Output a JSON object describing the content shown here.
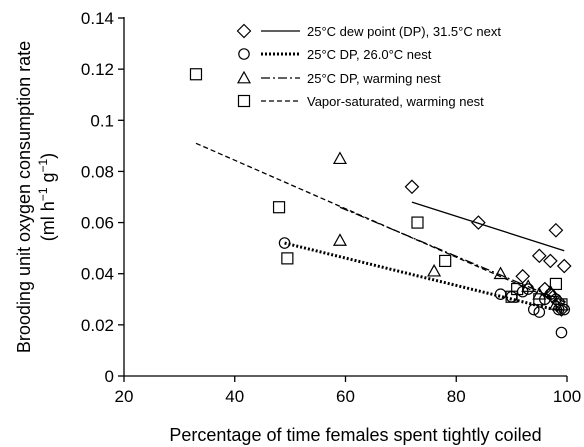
{
  "chart_data": {
    "type": "scatter",
    "xlabel": "Percentage of time females spent tightly coiled",
    "ylabel_line1": "Brooding unit oxygen consumption rate",
    "ylabel_line2_prefix": "(ml h",
    "ylabel_line2_mid": " g",
    "ylabel_line2_suffix": ")",
    "ylabel_sup": "−1",
    "xlim": [
      20,
      100
    ],
    "ylim": [
      0,
      0.14
    ],
    "xticks": [
      "20",
      "40",
      "60",
      "80",
      "100"
    ],
    "yticks": [
      "0",
      "0.02",
      "0.04",
      "0.06",
      "0.08",
      "0.1",
      "0.12",
      "0.14"
    ],
    "grid": false,
    "legend_position": "top-right",
    "series": [
      {
        "name": "25°C dew point (DP), 31.5°C next",
        "marker": "diamond",
        "line_style": "solid",
        "points": [
          [
            72,
            0.074
          ],
          [
            84,
            0.06
          ],
          [
            95,
            0.047
          ],
          [
            97,
            0.045
          ],
          [
            98,
            0.057
          ],
          [
            99.5,
            0.043
          ],
          [
            92,
            0.039
          ],
          [
            96,
            0.034
          ],
          [
            97.5,
            0.031
          ],
          [
            98.5,
            0.029
          ],
          [
            99,
            0.026
          ]
        ],
        "fit": [
          [
            72,
            0.068
          ],
          [
            99.5,
            0.049
          ]
        ]
      },
      {
        "name": "25°C DP, 26.0°C nest",
        "marker": "circle",
        "line_style": "dotted",
        "points": [
          [
            49,
            0.052
          ],
          [
            88,
            0.032
          ],
          [
            90,
            0.031
          ],
          [
            92,
            0.033
          ],
          [
            93,
            0.034
          ],
          [
            94,
            0.026
          ],
          [
            95,
            0.025
          ],
          [
            96,
            0.03
          ],
          [
            97,
            0.032
          ],
          [
            98,
            0.03
          ],
          [
            98.5,
            0.026
          ],
          [
            99,
            0.017
          ],
          [
            99.5,
            0.026
          ]
        ],
        "fit": [
          [
            49,
            0.052
          ],
          [
            99.5,
            0.025
          ]
        ]
      },
      {
        "name": "25°C DP, warming nest",
        "marker": "triangle",
        "line_style": "dashdot",
        "points": [
          [
            59,
            0.085
          ],
          [
            59,
            0.053
          ],
          [
            76,
            0.041
          ],
          [
            88,
            0.04
          ],
          [
            93,
            0.035
          ],
          [
            95,
            0.032
          ],
          [
            97,
            0.033
          ],
          [
            98,
            0.028
          ]
        ],
        "fit": [
          [
            59,
            0.066
          ],
          [
            99.5,
            0.029
          ]
        ]
      },
      {
        "name": "Vapor-saturated, warming nest",
        "marker": "square",
        "line_style": "dashed",
        "points": [
          [
            33,
            0.118
          ],
          [
            48,
            0.066
          ],
          [
            49.5,
            0.046
          ],
          [
            73,
            0.06
          ],
          [
            78,
            0.045
          ],
          [
            90,
            0.031
          ],
          [
            91,
            0.034
          ],
          [
            95,
            0.03
          ],
          [
            98,
            0.036
          ],
          [
            99,
            0.028
          ]
        ],
        "fit": [
          [
            33,
            0.091
          ],
          [
            99.5,
            0.028
          ]
        ]
      }
    ]
  }
}
